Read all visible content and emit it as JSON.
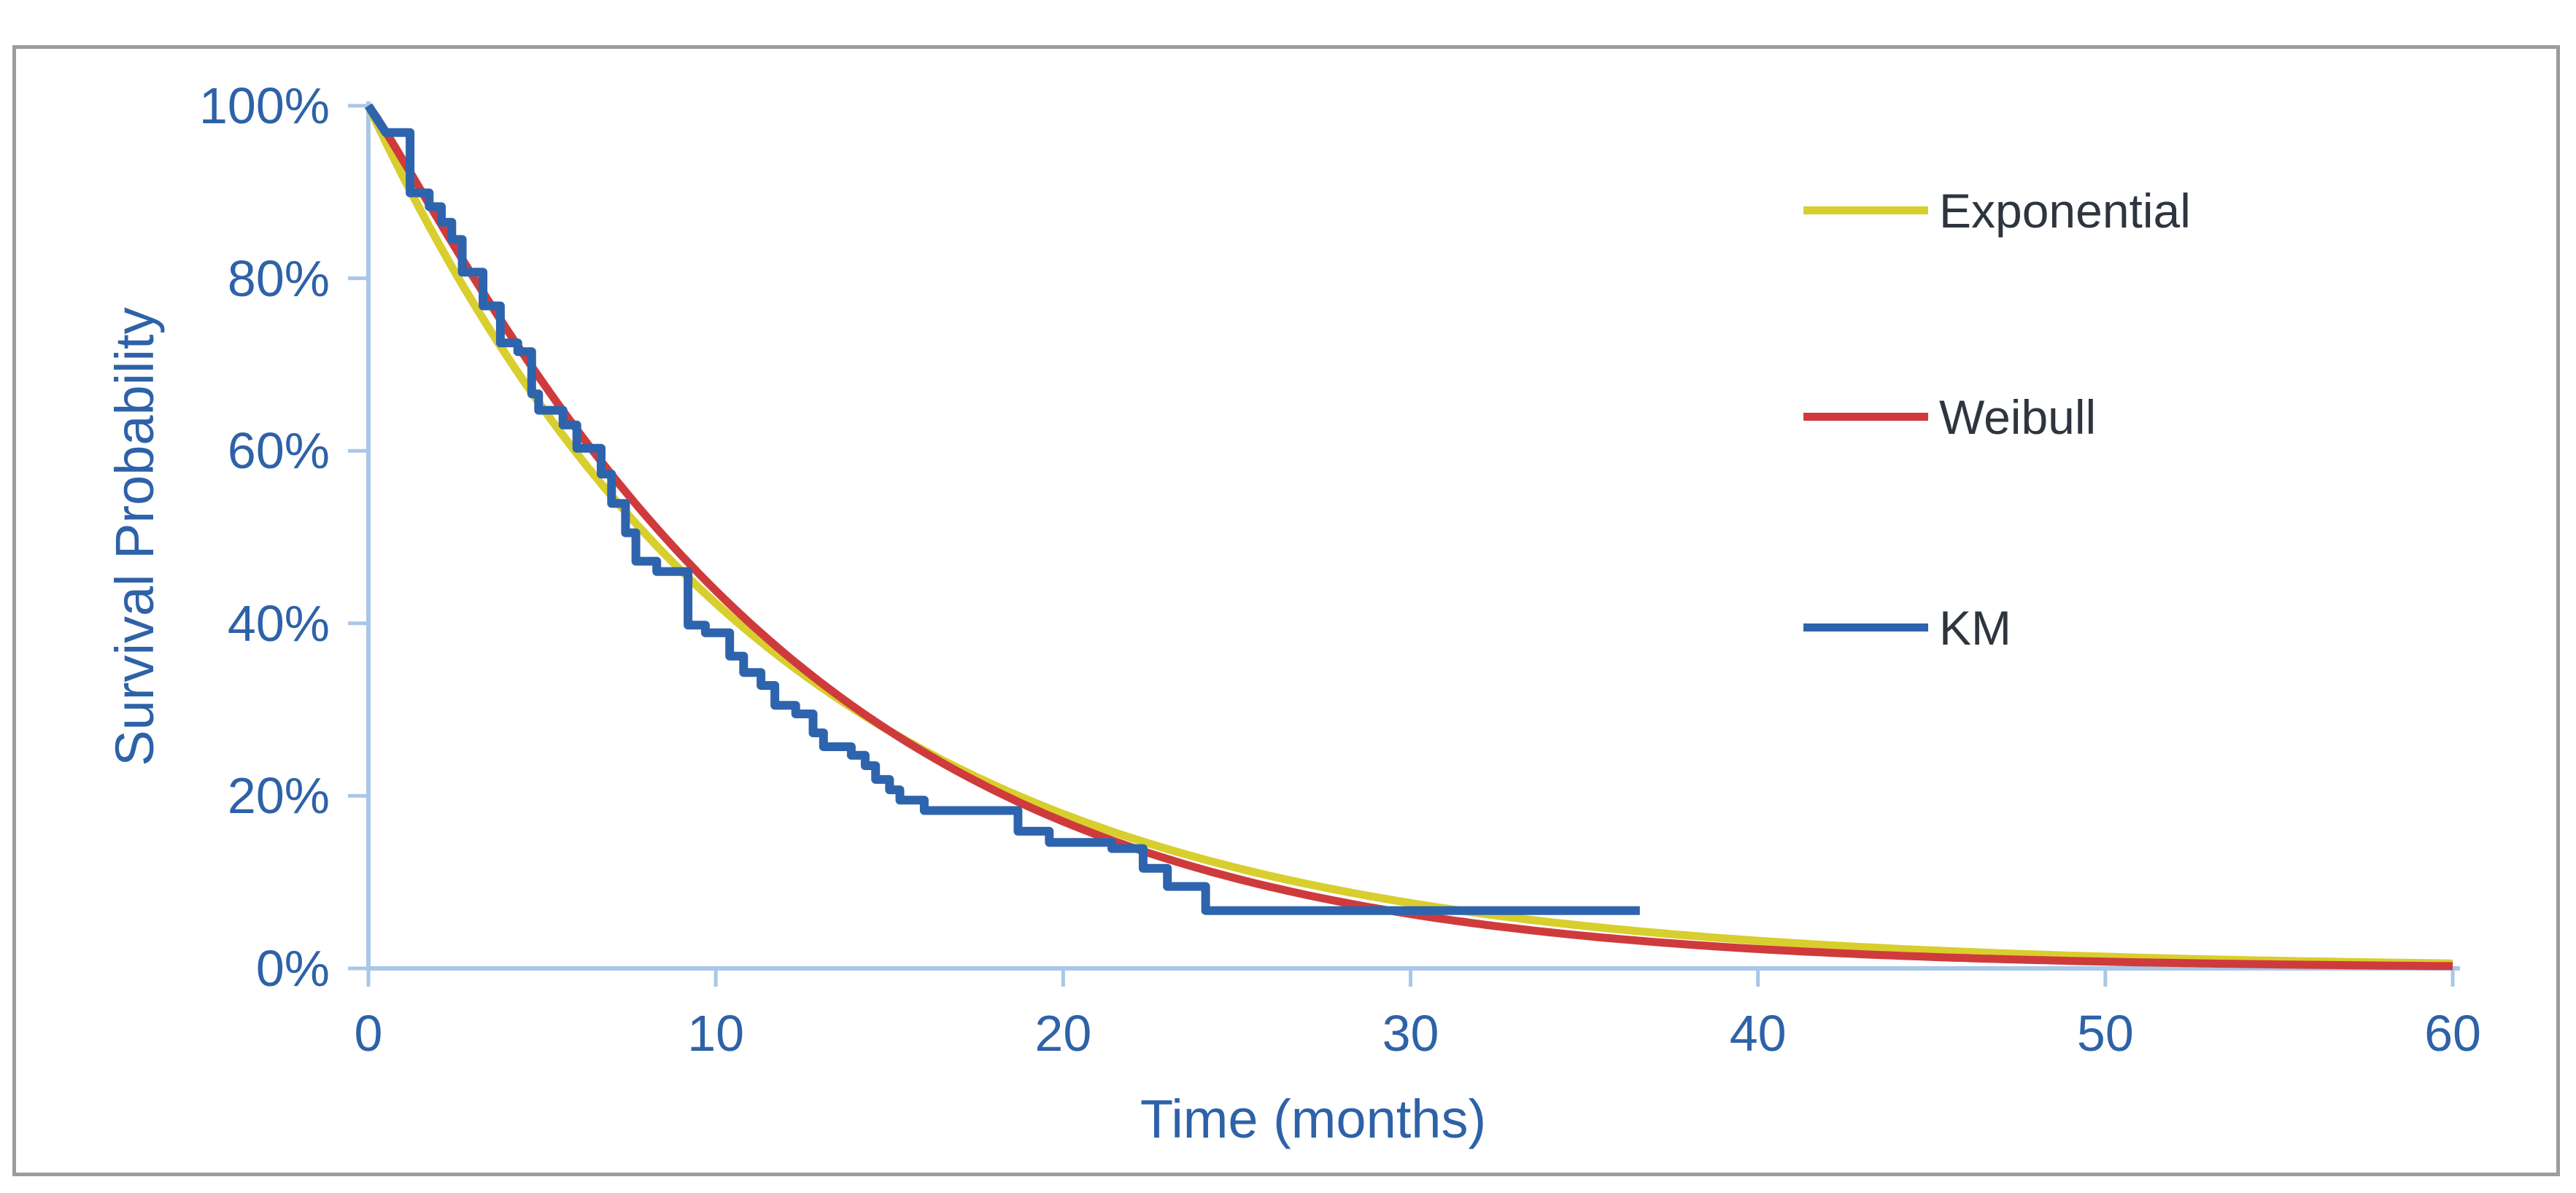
{
  "frame": {
    "background": "#FFFFFF",
    "border_color": "#9C9C9C"
  },
  "chart_data": {
    "type": "line",
    "title": "",
    "xlabel": "Time (months)",
    "ylabel": "Survival Probability",
    "xlim": [
      0,
      60
    ],
    "ylim_percent": [
      0,
      100
    ],
    "grid": false,
    "legend_position": "right-inside",
    "axis_color": "#A9C7E7",
    "tick_label_color": "#2E62A8",
    "legend_text_color": "#2F353F",
    "x_tick_values": [
      0,
      10,
      20,
      30,
      40,
      50,
      60
    ],
    "x_tick_labels": [
      "0",
      "10",
      "20",
      "30",
      "40",
      "50",
      "60"
    ],
    "y_tick_values": [
      100,
      80,
      60,
      40,
      20,
      0
    ],
    "y_tick_labels": [
      "100%",
      "80%",
      "60%",
      "40%",
      "20%",
      "0%"
    ],
    "series": [
      {
        "name": "Exponential",
        "model": "exponential",
        "lambda": 0.086,
        "color": "#D8CE2E",
        "t_range": [
          0,
          60
        ],
        "sample_values_percent": {
          "t": [
            0,
            5,
            10,
            20,
            30,
            40,
            50,
            60
          ],
          "s": [
            100,
            65.1,
            42.3,
            17.9,
            7.6,
            3.2,
            1.4,
            0.6
          ]
        }
      },
      {
        "name": "Weibull",
        "model": "weibull",
        "shape": 1.1,
        "scale": 11.9,
        "color": "#CF3B3C",
        "t_range": [
          0,
          60
        ],
        "sample_values_percent": {
          "t": [
            0,
            5,
            10,
            20,
            30,
            40,
            50,
            60
          ],
          "s": [
            100,
            68.3,
            43.6,
            16.1,
            5.6,
            1.9,
            0.7,
            0.2
          ]
        }
      },
      {
        "name": "KM",
        "model": "kaplan_meier_step",
        "color": "#2D64AD",
        "t_range": [
          0,
          36.6
        ],
        "points": [
          [
            0,
            100
          ],
          [
            0.5,
            96.9
          ],
          [
            1.2,
            89.9
          ],
          [
            1.75,
            88.3
          ],
          [
            2.1,
            86.5
          ],
          [
            2.4,
            84.5
          ],
          [
            2.7,
            80.7
          ],
          [
            3.3,
            76.8
          ],
          [
            3.8,
            72.5
          ],
          [
            4.3,
            71.5
          ],
          [
            4.7,
            66.6
          ],
          [
            4.9,
            64.7
          ],
          [
            5.6,
            63.0
          ],
          [
            6.0,
            60.3
          ],
          [
            6.7,
            57.3
          ],
          [
            7.0,
            53.9
          ],
          [
            7.4,
            50.5
          ],
          [
            7.7,
            47.2
          ],
          [
            8.3,
            46.0
          ],
          [
            9.2,
            39.8
          ],
          [
            9.7,
            38.9
          ],
          [
            10.4,
            36.2
          ],
          [
            10.8,
            34.3
          ],
          [
            11.3,
            32.8
          ],
          [
            11.7,
            30.5
          ],
          [
            12.3,
            29.5
          ],
          [
            12.8,
            27.3
          ],
          [
            13.1,
            25.7
          ],
          [
            13.9,
            24.7
          ],
          [
            14.3,
            23.5
          ],
          [
            14.6,
            21.9
          ],
          [
            15.0,
            20.7
          ],
          [
            15.3,
            19.5
          ],
          [
            16.0,
            18.3
          ],
          [
            18.7,
            15.9
          ],
          [
            19.6,
            14.6
          ],
          [
            21.4,
            13.9
          ],
          [
            22.3,
            11.6
          ],
          [
            23.0,
            9.5
          ],
          [
            24.1,
            6.7
          ],
          [
            36.6,
            6.7
          ]
        ]
      }
    ]
  }
}
